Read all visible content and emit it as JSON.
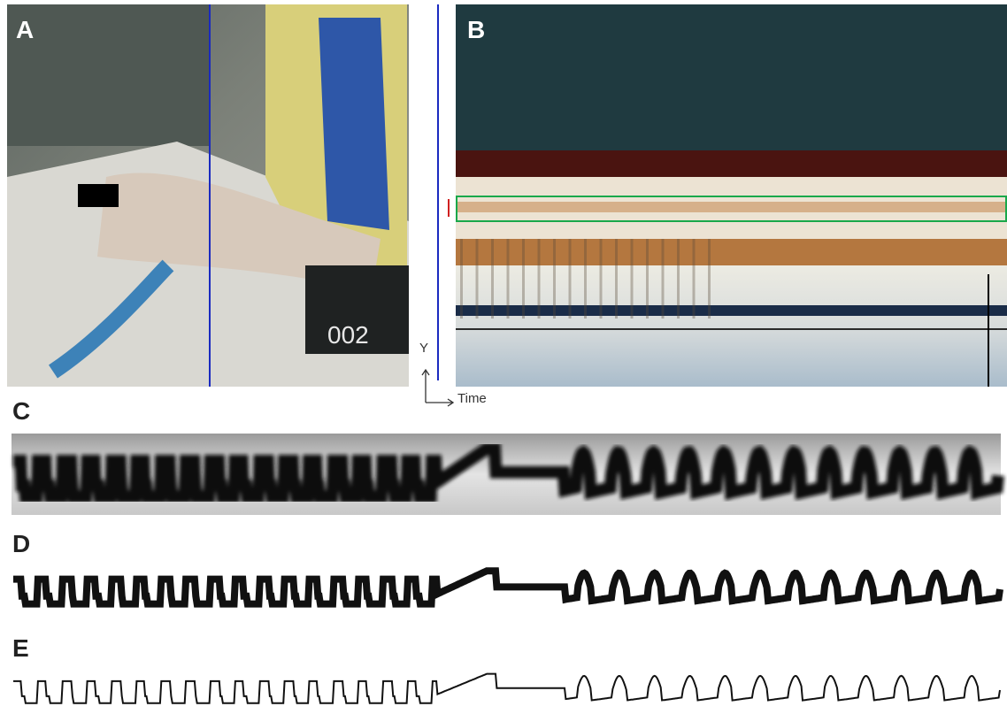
{
  "panel_labels": [
    "A",
    "B",
    "C",
    "D",
    "E"
  ],
  "video_counter": "002",
  "axes": {
    "y": "Y",
    "x": "Time"
  }
}
